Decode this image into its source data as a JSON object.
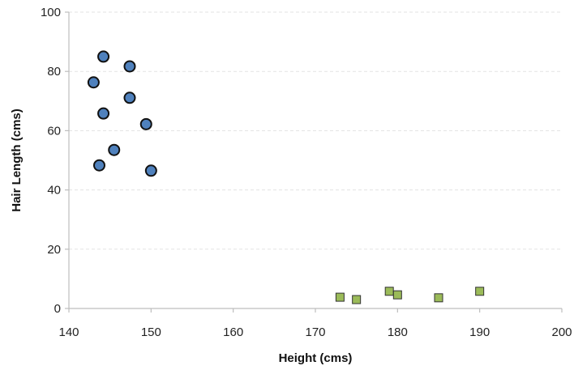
{
  "chart_data": {
    "type": "scatter",
    "title": "",
    "xlabel": "Height (cms)",
    "ylabel": "Hair Length (cms)",
    "xlim": [
      140,
      200
    ],
    "ylim": [
      0,
      100
    ],
    "xticks": [
      "140",
      "150",
      "160",
      "170",
      "180",
      "190",
      "200"
    ],
    "yticks": [
      "0",
      "20",
      "40",
      "60",
      "80",
      "100"
    ],
    "grid": "horizontal",
    "legend": "none",
    "series": [
      {
        "marker": "circle",
        "color": "#4f81bd",
        "points": [
          {
            "x": 144.2,
            "y": 85
          },
          {
            "x": 147.4,
            "y": 81.7
          },
          {
            "x": 143.0,
            "y": 76.3
          },
          {
            "x": 147.4,
            "y": 71.1
          },
          {
            "x": 144.2,
            "y": 65.8
          },
          {
            "x": 149.4,
            "y": 62.2
          },
          {
            "x": 145.5,
            "y": 53.5
          },
          {
            "x": 143.7,
            "y": 48.3
          },
          {
            "x": 150.0,
            "y": 46.5
          }
        ]
      },
      {
        "marker": "square",
        "color": "#9bbb59",
        "points": [
          {
            "x": 173.0,
            "y": 3.8
          },
          {
            "x": 175.0,
            "y": 3.0
          },
          {
            "x": 179.0,
            "y": 5.8
          },
          {
            "x": 180.0,
            "y": 4.6
          },
          {
            "x": 185.0,
            "y": 3.6
          },
          {
            "x": 190.0,
            "y": 5.8
          }
        ]
      }
    ]
  }
}
